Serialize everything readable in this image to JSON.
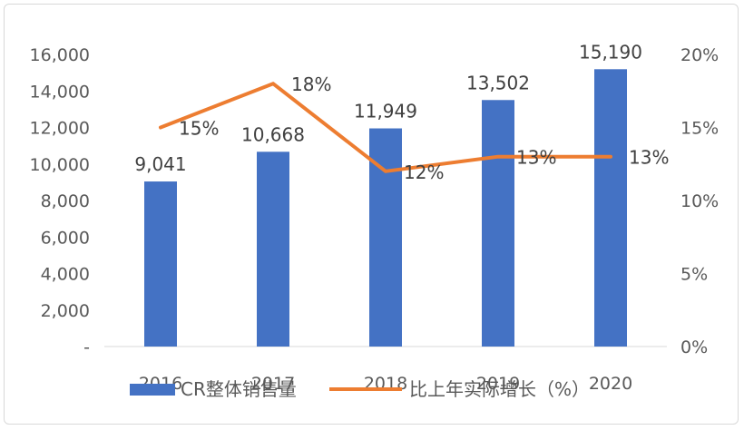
{
  "chart_data": {
    "type": "bar+line",
    "categories": [
      "2016",
      "2017",
      "2018",
      "2019",
      "2020"
    ],
    "series": [
      {
        "name": "CR整体销售量",
        "type": "bar",
        "axis": "left",
        "values": [
          9041,
          10668,
          11949,
          13502,
          15190
        ],
        "labels": [
          "9,041",
          "10,668",
          "11,949",
          "13,502",
          "15,190"
        ],
        "color": "#4472C4"
      },
      {
        "name": "比上年实际增长（%）",
        "type": "line",
        "axis": "right",
        "values": [
          15,
          18,
          12,
          13,
          13
        ],
        "labels": [
          "15%",
          "18%",
          "12%",
          "13%",
          "13%"
        ],
        "color": "#ED7D31"
      }
    ],
    "y_left": {
      "min": 0,
      "max": 16000,
      "ticks": [
        0,
        2000,
        4000,
        6000,
        8000,
        10000,
        12000,
        14000,
        16000
      ],
      "tick_labels": [
        "-",
        "2,000",
        "4,000",
        "6,000",
        "8,000",
        "10,000",
        "12,000",
        "14,000",
        "16,000"
      ]
    },
    "y_right": {
      "min": 0,
      "max": 20,
      "ticks": [
        0,
        5,
        10,
        15,
        20
      ],
      "tick_labels": [
        "0%",
        "5%",
        "10%",
        "15%",
        "20%"
      ]
    },
    "grid": false,
    "legend": "bottom"
  }
}
